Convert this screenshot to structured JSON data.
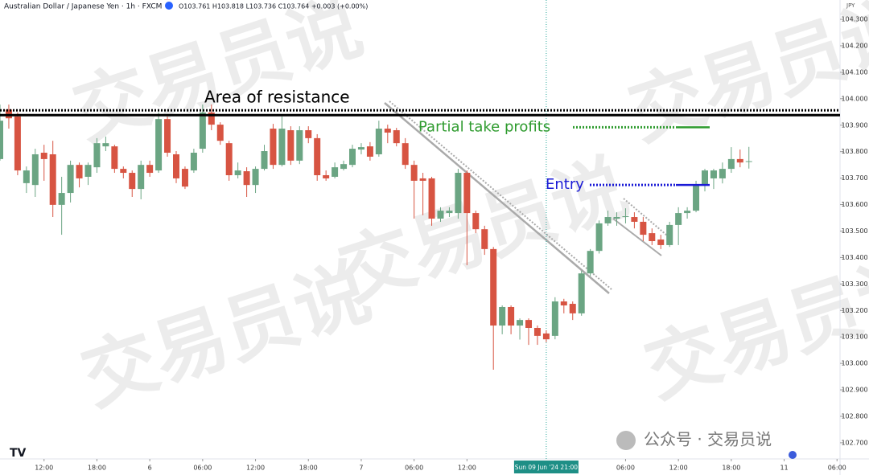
{
  "chart_data": {
    "type": "candlestick",
    "title": "Australian Dollar / Japanese Yen · 1h · FXCM",
    "readout": "O103.761 H103.818 L103.736 C103.764 +0.003 (+0.00%)",
    "currency": "JPY",
    "up_color": "#6ba583",
    "down_color": "#d75442",
    "open": [
      103.772,
      103.959,
      103.933,
      103.681,
      103.674,
      103.796,
      103.79,
      103.599,
      103.644,
      103.75,
      103.705,
      103.741,
      103.82,
      103.82,
      103.735,
      103.72,
      103.659,
      103.75,
      103.729,
      103.923,
      103.79,
      103.735,
      103.729,
      103.811,
      103.948,
      103.902,
      103.832,
      103.711,
      103.726,
      103.674,
      103.735,
      103.887,
      103.75,
      103.881,
      103.766,
      103.881,
      103.851,
      103.711,
      103.705,
      103.735,
      103.75,
      103.808,
      103.82,
      103.79,
      103.887,
      103.881,
      103.832,
      103.75,
      103.699,
      103.699,
      103.547,
      103.568,
      103.568,
      103.72,
      103.568,
      103.507,
      103.432,
      103.143,
      103.213,
      103.143,
      103.164,
      103.134,
      103.113,
      103.104,
      103.234,
      103.225,
      103.189,
      103.34,
      103.425,
      103.529,
      103.547,
      103.553,
      103.553,
      103.535,
      103.492,
      103.468,
      103.447,
      103.523,
      103.568,
      103.577,
      103.674,
      103.699,
      103.699,
      103.735,
      103.772,
      103.761
    ],
    "high": [
      103.978,
      103.978,
      103.948,
      103.744,
      103.811,
      103.826,
      103.841,
      103.705,
      103.766,
      103.759,
      103.759,
      103.851,
      103.857,
      103.826,
      103.744,
      103.729,
      103.766,
      103.766,
      103.948,
      103.933,
      103.802,
      103.744,
      103.811,
      103.978,
      103.978,
      103.911,
      103.841,
      103.759,
      103.741,
      103.744,
      103.826,
      103.905,
      103.933,
      103.896,
      103.896,
      103.896,
      103.866,
      103.729,
      103.759,
      103.766,
      103.826,
      103.832,
      103.836,
      103.917,
      103.902,
      103.89,
      103.851,
      103.766,
      103.72,
      103.705,
      103.59,
      103.59,
      103.735,
      103.729,
      103.577,
      103.52,
      103.44,
      103.219,
      103.219,
      103.17,
      103.17,
      103.143,
      103.125,
      103.25,
      103.244,
      103.234,
      103.35,
      103.432,
      103.54,
      103.577,
      103.571,
      103.586,
      103.571,
      103.553,
      103.51,
      103.486,
      103.535,
      103.59,
      103.59,
      103.69,
      103.735,
      103.735,
      103.759,
      103.817,
      103.808,
      103.818
    ],
    "low": [
      103.766,
      103.887,
      103.711,
      103.644,
      103.629,
      103.69,
      103.553,
      103.486,
      103.608,
      103.665,
      103.674,
      103.72,
      103.802,
      103.72,
      103.699,
      103.629,
      103.62,
      103.705,
      103.72,
      103.781,
      103.681,
      103.659,
      103.72,
      103.796,
      103.881,
      103.826,
      103.69,
      103.699,
      103.629,
      103.644,
      103.729,
      103.735,
      103.744,
      103.75,
      103.753,
      103.832,
      103.69,
      103.69,
      103.699,
      103.729,
      103.741,
      103.79,
      103.766,
      103.781,
      103.832,
      103.82,
      103.735,
      103.547,
      103.56,
      103.52,
      103.535,
      103.553,
      103.547,
      103.371,
      103.492,
      103.41,
      102.976,
      103.11,
      103.11,
      103.09,
      103.07,
      103.07,
      103.08,
      103.091,
      103.189,
      103.164,
      103.18,
      103.33,
      103.415,
      103.52,
      103.52,
      103.529,
      103.51,
      103.462,
      103.447,
      103.432,
      103.44,
      103.447,
      103.547,
      103.571,
      103.65,
      103.659,
      103.68,
      103.72,
      103.741,
      103.736
    ],
    "close": [
      103.917,
      103.926,
      103.729,
      103.729,
      103.79,
      103.772,
      103.599,
      103.644,
      103.75,
      103.699,
      103.75,
      103.832,
      103.832,
      103.735,
      103.72,
      103.659,
      103.75,
      103.72,
      103.923,
      103.796,
      103.699,
      103.668,
      103.796,
      103.948,
      103.902,
      103.841,
      103.711,
      103.729,
      103.674,
      103.735,
      103.802,
      103.75,
      103.887,
      103.766,
      103.881,
      103.851,
      103.711,
      103.699,
      103.741,
      103.753,
      103.811,
      103.817,
      103.781,
      103.887,
      103.872,
      103.832,
      103.75,
      103.69,
      103.69,
      103.547,
      103.577,
      103.577,
      103.72,
      103.568,
      103.507,
      103.432,
      103.143,
      103.213,
      103.143,
      103.164,
      103.134,
      103.104,
      103.091,
      103.234,
      103.219,
      103.189,
      103.34,
      103.425,
      103.529,
      103.553,
      103.553,
      103.556,
      103.535,
      103.486,
      103.462,
      103.447,
      103.523,
      103.568,
      103.577,
      103.674,
      103.729,
      103.729,
      103.735,
      103.772,
      103.759,
      103.764
    ],
    "ylim": [
      102.639,
      104.373
    ],
    "yticks": [
      {
        "value": 104.3,
        "label": "104.300"
      },
      {
        "value": 104.2,
        "label": "104.200"
      },
      {
        "value": 104.1,
        "label": "104.100"
      },
      {
        "value": 104.0,
        "label": "104.000"
      },
      {
        "value": 103.9,
        "label": "103.900"
      },
      {
        "value": 103.8,
        "label": "103.800"
      },
      {
        "value": 103.7,
        "label": "103.700"
      },
      {
        "value": 103.6,
        "label": "103.600"
      },
      {
        "value": 103.5,
        "label": "103.500"
      },
      {
        "value": 103.4,
        "label": "103.400"
      },
      {
        "value": 103.3,
        "label": "103.300"
      },
      {
        "value": 103.2,
        "label": "103.200"
      },
      {
        "value": 103.1,
        "label": "103.100"
      },
      {
        "value": 103.0,
        "label": "103.000"
      },
      {
        "value": 102.9,
        "label": "102.900"
      },
      {
        "value": 102.8,
        "label": "102.800"
      },
      {
        "value": 102.7,
        "label": "102.700"
      }
    ],
    "xticks": [
      {
        "value": 5,
        "label": "12:00"
      },
      {
        "value": 11,
        "label": "18:00"
      },
      {
        "value": 17,
        "label": "6"
      },
      {
        "value": 23,
        "label": "06:00"
      },
      {
        "value": 29,
        "label": "12:00"
      },
      {
        "value": 35,
        "label": "18:00"
      },
      {
        "value": 41,
        "label": "7"
      },
      {
        "value": 47,
        "label": "06:00"
      },
      {
        "value": 53,
        "label": "12:00"
      },
      {
        "value": 71,
        "label": "06:00"
      },
      {
        "value": 77,
        "label": "12:00"
      },
      {
        "value": 83,
        "label": "18:00"
      },
      {
        "value": 89,
        "label": "11"
      },
      {
        "value": 95,
        "label": "06:00"
      }
    ],
    "crosshair": {
      "value": 62,
      "label": "Sun 09 Jun '24   21:00"
    },
    "annotations": [
      {
        "text": "Area of resistance",
        "value": 103.938,
        "color": "#000000"
      },
      {
        "text": "Partial take profits",
        "value": 103.892,
        "color": "#2e9b2e"
      },
      {
        "text": "Entry",
        "value": 103.674,
        "color": "#1a1ad6"
      }
    ],
    "watermark": "交易员说",
    "footer_mark": "公众号 · 交易员说"
  }
}
